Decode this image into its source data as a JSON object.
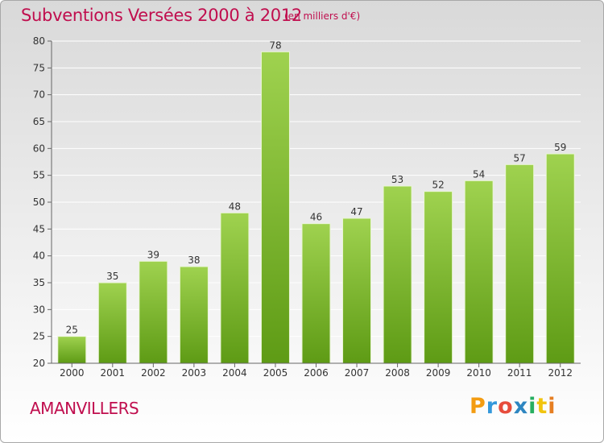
{
  "header": {
    "title": "Subventions Versées 2000 à 2012",
    "subtitle": "(en milliers d'€)"
  },
  "footer": {
    "commune": "AMANVILLERS",
    "brand_letters": [
      "P",
      "r",
      "o",
      "x",
      "i",
      "t",
      "i"
    ],
    "brand_colors": [
      "#f39c12",
      "#3498db",
      "#e74c3c",
      "#2e86c1",
      "#27ae60",
      "#f1c40f",
      "#e67e22"
    ]
  },
  "colors": {
    "accent": "#c00e4e",
    "bar_light": "#9fd24f",
    "bar_dark": "#5e9b15",
    "axis": "#666666",
    "grid": "#ffffff"
  },
  "chart_data": {
    "type": "bar",
    "title": "Subventions Versées 2000 à 2012",
    "subtitle": "(en milliers d'€)",
    "categories": [
      "2000",
      "2001",
      "2002",
      "2003",
      "2004",
      "2005",
      "2006",
      "2007",
      "2008",
      "2009",
      "2010",
      "2011",
      "2012"
    ],
    "values": [
      25,
      35,
      39,
      38,
      48,
      78,
      46,
      47,
      53,
      52,
      54,
      57,
      59
    ],
    "ylim": [
      20,
      80
    ],
    "yticks": [
      20,
      25,
      30,
      35,
      40,
      45,
      50,
      55,
      60,
      65,
      70,
      75,
      80
    ],
    "grid": true,
    "data_labels": true
  }
}
